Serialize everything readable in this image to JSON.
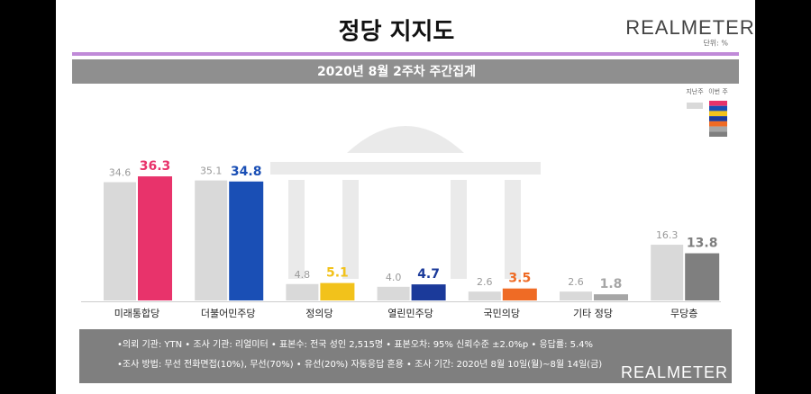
{
  "chart_data": {
    "type": "bar",
    "title": "정당 지지도",
    "subtitle": "2020년 8월 2주차 주간집계",
    "brand": "REALMETER",
    "unit": "단위: %",
    "categories": [
      "미래통합당",
      "더불어민주당",
      "정의당",
      "열린민주당",
      "국민의당",
      "기타 정당",
      "무당층"
    ],
    "series": [
      {
        "name": "지난주",
        "color": "#d9d9d9",
        "values": [
          34.6,
          35.1,
          4.8,
          4.0,
          2.6,
          2.6,
          16.3
        ],
        "value_labels": [
          "34.6",
          "35.1",
          "4.8",
          "4.0",
          "2.6",
          "2.6",
          "16.3"
        ]
      },
      {
        "name": "이번 주",
        "colors": [
          "#e8336b",
          "#1a4fb5",
          "#f2c21b",
          "#1b3a9a",
          "#ef6b25",
          "#a6a6a6",
          "#7f7f7f"
        ],
        "values": [
          36.3,
          34.8,
          5.1,
          4.7,
          3.5,
          1.8,
          13.8
        ]
      }
    ],
    "notes": [
      "•의뢰 기관: YTN • 조사 기관: 리얼미터 • 표본수: 전국 성인 2,515명 • 표본오차: 95% 신뢰수준 ±2.0%p • 응답률: 5.4%",
      "•조사 방법: 무선 전화면접(10%), 무선(70%) • 유선(20%) 자동응답 혼용 • 조사 기간: 2020년 8월 10일(월)~8월 14일(금)"
    ]
  }
}
